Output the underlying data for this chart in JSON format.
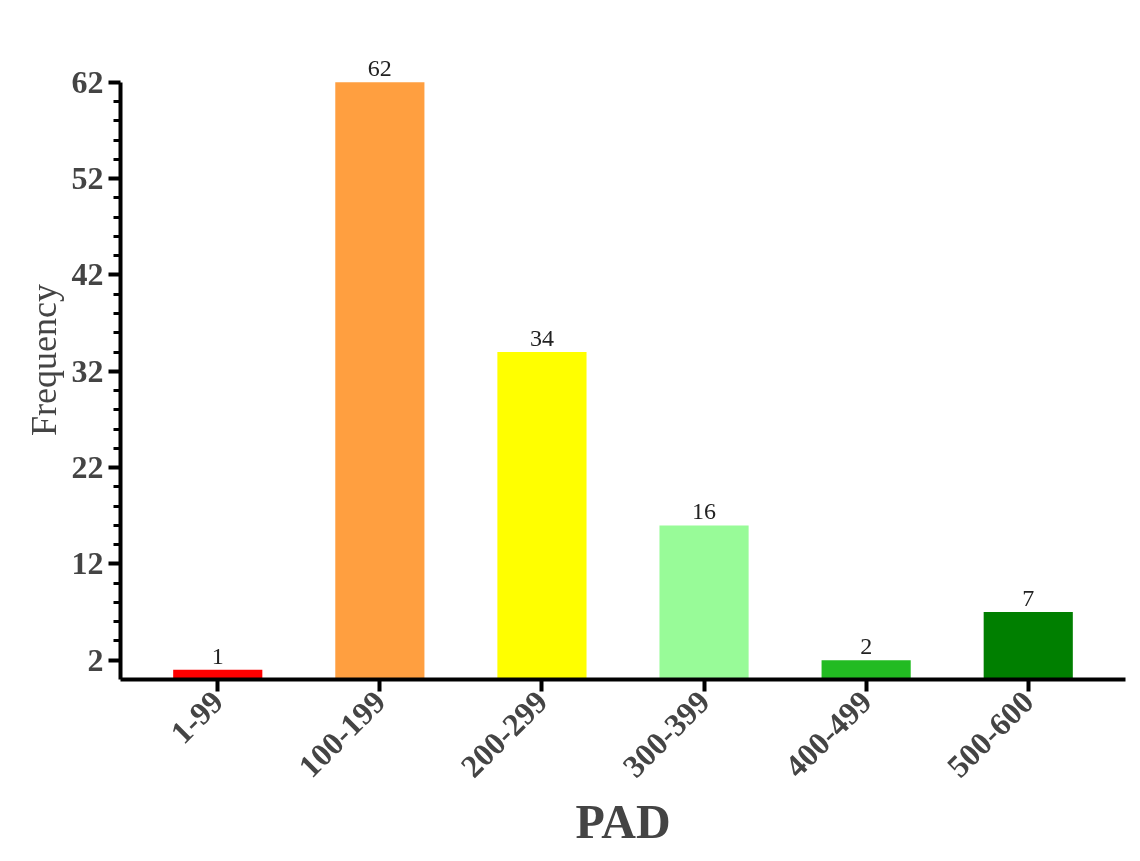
{
  "chart_data": {
    "type": "bar",
    "xlabel": "PAD",
    "ylabel": "Frequency",
    "categories": [
      "1-99",
      "100-199",
      "200-299",
      "300-399",
      "400-499",
      "500-600"
    ],
    "values": [
      1,
      62,
      34,
      16,
      2,
      7
    ],
    "colors": [
      "#ff0000",
      "#ff9f40",
      "#ffff00",
      "#98fb98",
      "#22bb22",
      "#007f00"
    ],
    "ylim": [
      0,
      62
    ],
    "yticks": [
      2,
      12,
      22,
      32,
      42,
      52,
      62
    ],
    "grid": false,
    "data_labels": true
  }
}
